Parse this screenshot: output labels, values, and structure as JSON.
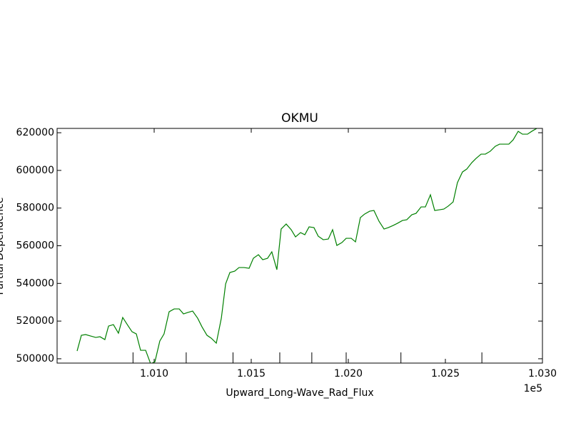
{
  "chart_data": {
    "type": "line",
    "title": "OKMU",
    "xlabel": "Upward_Long-Wave_Rad_Flux",
    "ylabel": "Partial Dependence",
    "x_offset_label": "1e5",
    "x": [
      100603,
      100625,
      100647,
      100673,
      100699,
      100721,
      100746,
      100765,
      100790,
      100816,
      100838,
      100864,
      100886,
      100908,
      100930,
      100956,
      100982,
      101004,
      101029,
      101051,
      101077,
      101103,
      101129,
      101151,
      101173,
      101198,
      101224,
      101246,
      101272,
      101294,
      101320,
      101346,
      101368,
      101390,
      101415,
      101437,
      101463,
      101489,
      101511,
      101537,
      101559,
      101584,
      101606,
      101632,
      101654,
      101680,
      101706,
      101728,
      101754,
      101776,
      101798,
      101823,
      101845,
      101871,
      101897,
      101919,
      101941,
      101967,
      101989,
      102015,
      102037,
      102062,
      102084,
      102110,
      102132,
      102158,
      102184,
      102206,
      102231,
      102253,
      102279,
      102301,
      102327,
      102349,
      102375,
      102397,
      102423,
      102445,
      102470,
      102492,
      102514,
      102540,
      102562,
      102588,
      102610,
      102636,
      102658,
      102684,
      102706,
      102731,
      102757,
      102779,
      102801,
      102827,
      102849,
      102875,
      102897,
      102923,
      102945,
      102970
    ],
    "series": [
      {
        "color": "#008000",
        "values": [
          504120,
          512450,
          512830,
          512070,
          511310,
          511690,
          510180,
          517370,
          518130,
          513590,
          521920,
          517750,
          514340,
          513210,
          504500,
          504500,
          497300,
          498440,
          509420,
          513210,
          524950,
          526460,
          526460,
          523810,
          524570,
          525330,
          521540,
          516990,
          512450,
          510930,
          508280,
          521540,
          539720,
          545780,
          546530,
          548430,
          548430,
          548050,
          553350,
          555240,
          552590,
          553350,
          556760,
          547290,
          568880,
          571530,
          568500,
          564710,
          566980,
          565850,
          570010,
          569630,
          565090,
          563200,
          563570,
          568500,
          560170,
          561680,
          563950,
          563950,
          562060,
          574930,
          576830,
          578340,
          578720,
          573040,
          568880,
          569630,
          570770,
          571900,
          573420,
          573800,
          576450,
          577210,
          580620,
          580620,
          587050,
          578720,
          579100,
          579480,
          580990,
          583270,
          593490,
          599170,
          600690,
          604100,
          606370,
          608640,
          608640,
          610150,
          612800,
          613940,
          613940,
          613940,
          616210,
          620760,
          619240,
          619240,
          620760,
          622270
        ]
      }
    ],
    "deciles": [
      100891,
      101165,
      101406,
      101647,
      101812,
      101989,
      102271,
      102688
    ],
    "xlim": [
      100500,
      103000
    ],
    "ylim": [
      497700,
      622300
    ],
    "xticks": [
      {
        "value": 101000,
        "label": "1.010"
      },
      {
        "value": 101500,
        "label": "1.015"
      },
      {
        "value": 102000,
        "label": "1.020"
      },
      {
        "value": 102500,
        "label": "1.025"
      },
      {
        "value": 103000,
        "label": "1.030"
      }
    ],
    "yticks": [
      500000,
      520000,
      540000,
      560000,
      580000,
      600000,
      620000
    ]
  }
}
